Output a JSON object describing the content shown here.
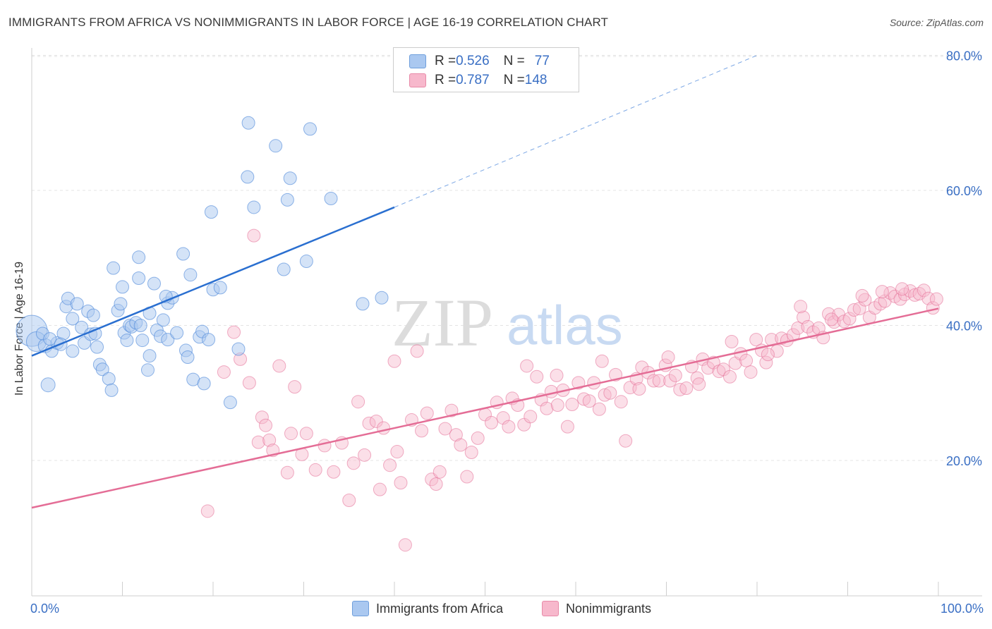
{
  "title": "IMMIGRANTS FROM AFRICA VS NONIMMIGRANTS IN LABOR FORCE | AGE 16-19 CORRELATION CHART",
  "source": "Source: ZipAtlas.com",
  "watermark": {
    "zip": "ZIP",
    "atlas": "atlas"
  },
  "legend_top": {
    "rows": [
      {
        "r_label": "R = ",
        "r_value": "0.526",
        "n_label": "N = ",
        "n_value": "77",
        "color": "#aac8f0"
      },
      {
        "r_label": "R = ",
        "r_value": "0.787",
        "n_label": "N = ",
        "n_value": "148",
        "color": "#f7b8cc"
      }
    ]
  },
  "legend_bottom": [
    {
      "label": "Immigrants from Africa",
      "color": "#aac8f0"
    },
    {
      "label": "Nonimmigrants",
      "color": "#f7b8cc"
    }
  ],
  "chart_data": {
    "type": "scatter",
    "ylabel": "In Labor Force | Age 16-19",
    "xlim": [
      0,
      100
    ],
    "ylim": [
      0,
      85
    ],
    "x_tick_labels": [
      "0.0%",
      "100.0%"
    ],
    "y_ticks": [
      20,
      40,
      60,
      80
    ],
    "y_tick_labels": [
      "20.0%",
      "40.0%",
      "60.0%",
      "80.0%"
    ],
    "grid": true,
    "colors": {
      "blue": "#4a86d8",
      "blue_fill": "#aac8f0",
      "pink": "#e46d96",
      "pink_fill": "#f7b8cc",
      "tick": "#3a6fc4"
    },
    "series": [
      {
        "name": "Immigrants from Africa",
        "color": "#4a86d8",
        "trend": {
          "x1": 0,
          "y1": 35.5,
          "x2": 40,
          "y2": 57.5,
          "dash_to_x": 80,
          "dash_to_y": 80
        },
        "points": [
          [
            0.0,
            39.2,
            22
          ],
          [
            0.5,
            37.6,
            14
          ],
          [
            1.5,
            37.0,
            10
          ],
          [
            1.2,
            38.8,
            9
          ],
          [
            2.2,
            36.2,
            9
          ],
          [
            2.8,
            37.4,
            9
          ],
          [
            3.5,
            38.8,
            9
          ],
          [
            3.8,
            42.8,
            9
          ],
          [
            4.0,
            44.0,
            9
          ],
          [
            4.5,
            41.0,
            9
          ],
          [
            4.5,
            36.2,
            9
          ],
          [
            5.0,
            43.2,
            9
          ],
          [
            5.5,
            39.7,
            9
          ],
          [
            5.8,
            37.4,
            9
          ],
          [
            6.2,
            42.1,
            9
          ],
          [
            6.5,
            38.7,
            9
          ],
          [
            7.0,
            38.8,
            9
          ],
          [
            7.2,
            36.8,
            9
          ],
          [
            7.5,
            34.2,
            9
          ],
          [
            7.8,
            33.5,
            9
          ],
          [
            8.5,
            32.1,
            9
          ],
          [
            8.8,
            30.4,
            9
          ],
          [
            9.0,
            48.5,
            9
          ],
          [
            9.5,
            42.2,
            9
          ],
          [
            9.8,
            43.2,
            9
          ],
          [
            10.0,
            45.7,
            9
          ],
          [
            10.2,
            38.9,
            9
          ],
          [
            10.5,
            37.8,
            9
          ],
          [
            10.8,
            40.0,
            9
          ],
          [
            11.0,
            39.8,
            9
          ],
          [
            11.5,
            40.4,
            9
          ],
          [
            11.8,
            50.1,
            9
          ],
          [
            11.8,
            47.0,
            9
          ],
          [
            12.2,
            37.8,
            9
          ],
          [
            12.8,
            33.4,
            9
          ],
          [
            13.0,
            35.5,
            9
          ],
          [
            13.0,
            41.8,
            9
          ],
          [
            13.5,
            46.2,
            9
          ],
          [
            13.8,
            39.3,
            9
          ],
          [
            14.2,
            38.4,
            9
          ],
          [
            14.5,
            40.8,
            9
          ],
          [
            15.0,
            37.9,
            9
          ],
          [
            15.0,
            43.3,
            9
          ],
          [
            15.5,
            44.1,
            9
          ],
          [
            16.0,
            38.9,
            9
          ],
          [
            14.8,
            44.3,
            9
          ],
          [
            16.7,
            50.6,
            9
          ],
          [
            17.0,
            36.3,
            9
          ],
          [
            17.2,
            35.3,
            9
          ],
          [
            17.5,
            47.5,
            9
          ],
          [
            17.8,
            32.0,
            9
          ],
          [
            18.5,
            38.3,
            9
          ],
          [
            18.8,
            39.1,
            9
          ],
          [
            19.0,
            31.4,
            9
          ],
          [
            19.5,
            37.9,
            9
          ],
          [
            19.8,
            56.8,
            9
          ],
          [
            20.0,
            45.3,
            9
          ],
          [
            20.8,
            45.6,
            9
          ],
          [
            21.9,
            28.6,
            9
          ],
          [
            22.8,
            36.5,
            9
          ],
          [
            23.9,
            70.0,
            9
          ],
          [
            23.8,
            62.0,
            9
          ],
          [
            24.5,
            57.5,
            9
          ],
          [
            26.9,
            66.6,
            9
          ],
          [
            27.8,
            48.3,
            9
          ],
          [
            28.2,
            58.6,
            9
          ],
          [
            28.5,
            61.8,
            9
          ],
          [
            30.3,
            49.5,
            9
          ],
          [
            30.7,
            69.1,
            9
          ],
          [
            33.0,
            58.8,
            9
          ],
          [
            36.5,
            43.2,
            9
          ],
          [
            38.6,
            44.1,
            9
          ],
          [
            1.8,
            31.2,
            10
          ],
          [
            2.0,
            38.0,
            9
          ],
          [
            3.2,
            37.2,
            9
          ],
          [
            6.8,
            41.5,
            9
          ],
          [
            12.0,
            40.0,
            9
          ]
        ]
      },
      {
        "name": "Nonimmigrants",
        "color": "#e46d96",
        "trend": {
          "x1": 0,
          "y1": 13.0,
          "x2": 100,
          "y2": 42.5
        },
        "points": [
          [
            19.4,
            12.5
          ],
          [
            21.2,
            33.1
          ],
          [
            22.3,
            39.0
          ],
          [
            23.0,
            35.0
          ],
          [
            24.0,
            31.5
          ],
          [
            24.5,
            53.3
          ],
          [
            25.0,
            22.7
          ],
          [
            25.4,
            26.4
          ],
          [
            25.8,
            25.2
          ],
          [
            26.2,
            23.0
          ],
          [
            26.6,
            21.5
          ],
          [
            27.3,
            34.0
          ],
          [
            28.2,
            18.2
          ],
          [
            28.6,
            24.0
          ],
          [
            29.0,
            30.9
          ],
          [
            29.8,
            20.9
          ],
          [
            30.3,
            24.0
          ],
          [
            31.3,
            18.6
          ],
          [
            32.3,
            22.2
          ],
          [
            33.3,
            18.3
          ],
          [
            34.2,
            22.6
          ],
          [
            35.0,
            14.1
          ],
          [
            35.5,
            19.6
          ],
          [
            36.0,
            28.7
          ],
          [
            36.7,
            20.8
          ],
          [
            37.2,
            25.5
          ],
          [
            38.0,
            25.8
          ],
          [
            38.4,
            15.7
          ],
          [
            38.8,
            24.8
          ],
          [
            39.5,
            19.3
          ],
          [
            40.0,
            34.7
          ],
          [
            40.3,
            21.3
          ],
          [
            40.7,
            16.7
          ],
          [
            41.2,
            7.5
          ],
          [
            41.9,
            26.0
          ],
          [
            42.5,
            36.2
          ],
          [
            43.0,
            24.4
          ],
          [
            43.6,
            27.0
          ],
          [
            44.1,
            17.2
          ],
          [
            44.6,
            16.5
          ],
          [
            45.0,
            18.3
          ],
          [
            45.6,
            24.7
          ],
          [
            46.3,
            27.4
          ],
          [
            46.8,
            23.8
          ],
          [
            47.3,
            22.3
          ],
          [
            48.0,
            17.6
          ],
          [
            48.5,
            21.2
          ],
          [
            49.2,
            23.3
          ],
          [
            50.0,
            26.8
          ],
          [
            50.7,
            25.6
          ],
          [
            51.3,
            28.6
          ],
          [
            52.0,
            26.3
          ],
          [
            52.6,
            25.0
          ],
          [
            53.0,
            29.2
          ],
          [
            53.6,
            28.2
          ],
          [
            54.3,
            25.3
          ],
          [
            55.0,
            26.5
          ],
          [
            55.7,
            32.4
          ],
          [
            56.2,
            29.0
          ],
          [
            56.8,
            27.7
          ],
          [
            57.3,
            30.2
          ],
          [
            58.0,
            28.2
          ],
          [
            58.6,
            30.4
          ],
          [
            59.1,
            25.0
          ],
          [
            59.6,
            28.3
          ],
          [
            60.3,
            31.5
          ],
          [
            60.9,
            29.1
          ],
          [
            61.5,
            28.8
          ],
          [
            62.0,
            31.5
          ],
          [
            62.6,
            27.6
          ],
          [
            63.2,
            29.7
          ],
          [
            63.8,
            30.0
          ],
          [
            64.4,
            32.7
          ],
          [
            65.0,
            28.7
          ],
          [
            65.5,
            22.9
          ],
          [
            66.0,
            30.8
          ],
          [
            66.7,
            32.1
          ],
          [
            67.3,
            33.8
          ],
          [
            68.0,
            33.0
          ],
          [
            68.6,
            31.8
          ],
          [
            69.2,
            31.8
          ],
          [
            69.9,
            34.1
          ],
          [
            70.4,
            31.8
          ],
          [
            71.0,
            32.6
          ],
          [
            71.5,
            30.5
          ],
          [
            72.2,
            30.7
          ],
          [
            72.8,
            33.9
          ],
          [
            73.4,
            32.2
          ],
          [
            74.0,
            35.0
          ],
          [
            74.6,
            33.7
          ],
          [
            75.2,
            34.5
          ],
          [
            75.8,
            33.2
          ],
          [
            76.3,
            33.5
          ],
          [
            77.0,
            32.4
          ],
          [
            77.6,
            34.4
          ],
          [
            78.2,
            35.8
          ],
          [
            78.8,
            34.8
          ],
          [
            79.3,
            33.1
          ],
          [
            79.9,
            37.9
          ],
          [
            80.5,
            36.3
          ],
          [
            81.0,
            34.5
          ],
          [
            81.6,
            37.9
          ],
          [
            82.2,
            36.2
          ],
          [
            82.7,
            38.1
          ],
          [
            83.3,
            37.8
          ],
          [
            84.0,
            38.6
          ],
          [
            84.5,
            39.6
          ],
          [
            85.1,
            41.2
          ],
          [
            85.6,
            39.8
          ],
          [
            86.2,
            39.0
          ],
          [
            86.8,
            39.6
          ],
          [
            87.3,
            38.2
          ],
          [
            87.9,
            41.7
          ],
          [
            88.5,
            40.5
          ],
          [
            89.0,
            41.6
          ],
          [
            89.6,
            40.6
          ],
          [
            90.2,
            41.0
          ],
          [
            90.7,
            42.3
          ],
          [
            91.3,
            42.5
          ],
          [
            91.9,
            43.8
          ],
          [
            92.4,
            41.2
          ],
          [
            93.0,
            42.6
          ],
          [
            93.6,
            43.2
          ],
          [
            94.1,
            43.6
          ],
          [
            94.7,
            44.8
          ],
          [
            95.2,
            44.3
          ],
          [
            95.8,
            43.9
          ],
          [
            96.3,
            44.6
          ],
          [
            96.9,
            45.1
          ],
          [
            97.4,
            44.5
          ],
          [
            97.9,
            44.7
          ],
          [
            98.4,
            45.2
          ],
          [
            98.9,
            44.0
          ],
          [
            99.4,
            42.6
          ],
          [
            99.8,
            43.9
          ],
          [
            54.6,
            34.0
          ],
          [
            57.9,
            32.6
          ],
          [
            62.9,
            34.7
          ],
          [
            67.0,
            30.6
          ],
          [
            70.2,
            35.3
          ],
          [
            73.6,
            31.3
          ],
          [
            77.2,
            37.6
          ],
          [
            81.2,
            35.7
          ],
          [
            84.8,
            42.8
          ],
          [
            88.2,
            40.9
          ],
          [
            91.6,
            44.4
          ],
          [
            93.8,
            45.0
          ],
          [
            96.0,
            45.4
          ]
        ]
      }
    ]
  }
}
